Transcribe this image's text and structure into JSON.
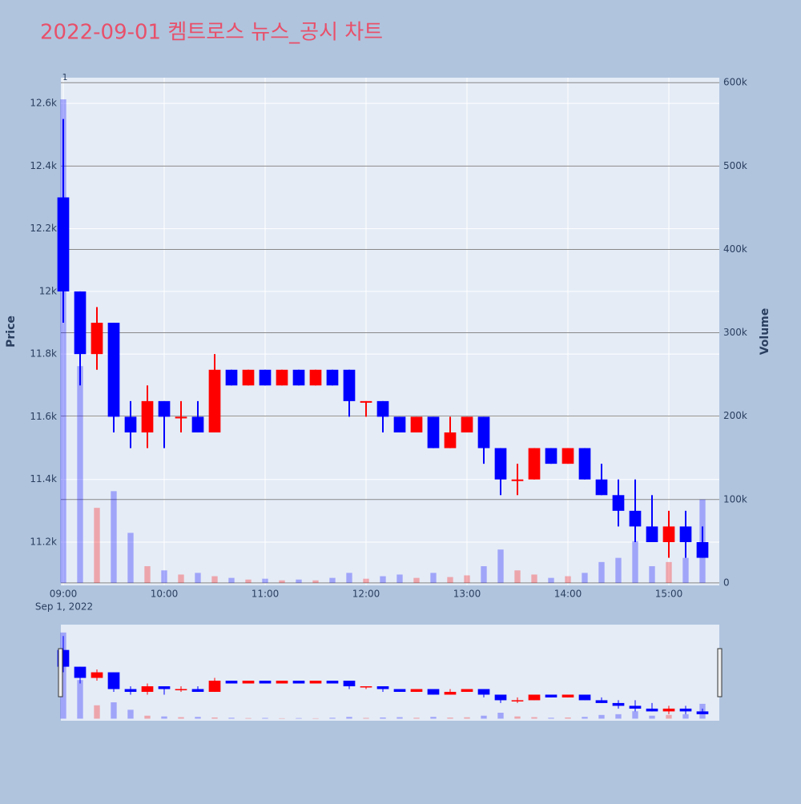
{
  "chart_data": {
    "type": "candlestick",
    "title": "2022-09-01 켐트로스 뉴스_공시 차트",
    "ylabel": "Price",
    "y2label": "Volume",
    "annotation": "1",
    "x_sub_label": "Sep 1, 2022",
    "x": [
      "09:00",
      "09:10",
      "09:20",
      "09:30",
      "09:40",
      "09:50",
      "10:00",
      "10:10",
      "10:20",
      "10:30",
      "10:40",
      "10:50",
      "11:00",
      "11:10",
      "11:20",
      "11:30",
      "11:40",
      "11:50",
      "12:00",
      "12:10",
      "12:20",
      "12:30",
      "12:40",
      "12:50",
      "13:00",
      "13:10",
      "13:20",
      "13:30",
      "13:40",
      "13:50",
      "14:00",
      "14:10",
      "14:20",
      "14:30",
      "14:40",
      "14:50",
      "15:00",
      "15:10",
      "15:20"
    ],
    "open": [
      12300,
      12000,
      11800,
      11900,
      11600,
      11550,
      11650,
      11600,
      11600,
      11550,
      11750,
      11700,
      11750,
      11700,
      11750,
      11700,
      11750,
      11750,
      11650,
      11650,
      11600,
      11550,
      11600,
      11500,
      11550,
      11600,
      11500,
      11400,
      11400,
      11500,
      11450,
      11500,
      11400,
      11350,
      11300,
      11250,
      11200,
      11250,
      11200
    ],
    "high": [
      12550,
      12000,
      11950,
      11900,
      11650,
      11700,
      11650,
      11650,
      11650,
      11800,
      11750,
      11750,
      11750,
      11750,
      11750,
      11750,
      11750,
      11750,
      11650,
      11650,
      11600,
      11600,
      11600,
      11600,
      11600,
      11600,
      11500,
      11450,
      11500,
      11500,
      11500,
      11500,
      11450,
      11400,
      11400,
      11350,
      11300,
      11300,
      11250
    ],
    "low": [
      11900,
      11700,
      11750,
      11550,
      11500,
      11500,
      11500,
      11550,
      11550,
      11550,
      11700,
      11700,
      11700,
      11700,
      11700,
      11700,
      11700,
      11600,
      11600,
      11550,
      11550,
      11550,
      11500,
      11500,
      11550,
      11450,
      11350,
      11350,
      11400,
      11450,
      11450,
      11400,
      11350,
      11250,
      11200,
      11200,
      11150,
      11150,
      11150
    ],
    "close": [
      12000,
      11800,
      11900,
      11600,
      11550,
      11650,
      11600,
      11600,
      11550,
      11750,
      11700,
      11750,
      11700,
      11750,
      11700,
      11750,
      11700,
      11650,
      11650,
      11600,
      11550,
      11600,
      11500,
      11550,
      11600,
      11500,
      11400,
      11400,
      11500,
      11450,
      11500,
      11400,
      11350,
      11300,
      11250,
      11200,
      11250,
      11200,
      11150
    ],
    "volume": [
      580000,
      260000,
      90000,
      110000,
      60000,
      20000,
      15000,
      10000,
      12000,
      8000,
      6000,
      4000,
      5000,
      3000,
      4000,
      3000,
      6000,
      12000,
      5000,
      8000,
      10000,
      6000,
      12000,
      7000,
      9000,
      20000,
      40000,
      15000,
      10000,
      6000,
      8000,
      12000,
      25000,
      30000,
      50000,
      20000,
      25000,
      30000,
      100000
    ],
    "increasing_color": "#ff0000",
    "decreasing_color": "#0000ff",
    "xlim": [
      "09:00",
      "15:30"
    ],
    "xticks": [
      "09:00",
      "10:00",
      "11:00",
      "12:00",
      "13:00",
      "14:00",
      "15:00"
    ],
    "ylim": [
      11062,
      12682
    ],
    "yticks": [
      {
        "value": 11200,
        "label": "11.2k"
      },
      {
        "value": 11400,
        "label": "11.4k"
      },
      {
        "value": 11600,
        "label": "11.6k"
      },
      {
        "value": 11800,
        "label": "11.8k"
      },
      {
        "value": 12000,
        "label": "12k"
      },
      {
        "value": 12200,
        "label": "12.2k"
      },
      {
        "value": 12400,
        "label": "12.4k"
      },
      {
        "value": 12600,
        "label": "12.6k"
      }
    ],
    "y2lim": [
      -3000,
      606000
    ],
    "y2ticks": [
      0,
      {
        "value": 100000,
        "label": "100k"
      },
      {
        "value": 200000,
        "label": "200k"
      },
      {
        "value": 300000,
        "label": "300k"
      },
      {
        "value": 400000,
        "label": "400k"
      },
      {
        "value": 500000,
        "label": "500k"
      },
      {
        "value": 600000,
        "label": "600k"
      }
    ],
    "grid": true,
    "rangeslider": true
  }
}
